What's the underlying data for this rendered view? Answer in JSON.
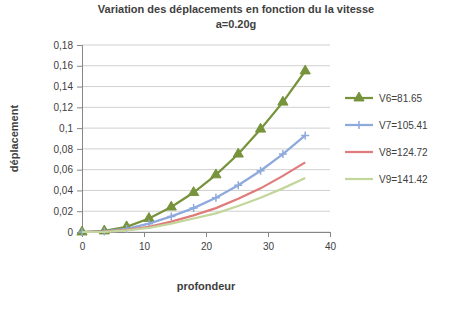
{
  "chart_data": {
    "type": "line",
    "title": "Variation des déplacements en fonction du la vitesse",
    "subtitle": "a=0.20g",
    "x_label": "profondeur",
    "y_label": "déplacement",
    "x": [
      0,
      3.6,
      7.2,
      10.8,
      14.4,
      18,
      21.6,
      25.2,
      28.8,
      32.4,
      36
    ],
    "series": [
      {
        "name": "V6=81.65",
        "color": "#77933c",
        "marker": "triangle",
        "values": [
          0,
          0.001,
          0.005,
          0.013,
          0.024,
          0.038,
          0.055,
          0.075,
          0.099,
          0.125,
          0.155
        ]
      },
      {
        "name": "V7=105.41",
        "color": "#8ea9db",
        "marker": "plus",
        "values": [
          0,
          0.0005,
          0.003,
          0.008,
          0.015,
          0.023,
          0.033,
          0.045,
          0.059,
          0.075,
          0.093
        ]
      },
      {
        "name": "V8=124.72",
        "color": "#e07b7b",
        "marker": "none",
        "values": [
          0,
          0.0003,
          0.002,
          0.005,
          0.01,
          0.016,
          0.023,
          0.032,
          0.042,
          0.054,
          0.067
        ]
      },
      {
        "name": "V9=141.42",
        "color": "#c3d69b",
        "marker": "none",
        "values": [
          0,
          0.0002,
          0.0015,
          0.004,
          0.008,
          0.013,
          0.018,
          0.025,
          0.033,
          0.042,
          0.052
        ]
      }
    ],
    "xlim": [
      0,
      40
    ],
    "xticks": [
      0,
      10,
      20,
      30,
      40
    ],
    "ylim": [
      0,
      0.18
    ],
    "yticks": [
      0,
      {
        "value": 0.02,
        "label": "0,02"
      },
      {
        "value": 0.04,
        "label": "0,04"
      },
      {
        "value": 0.06,
        "label": "0,06"
      },
      {
        "value": 0.08,
        "label": "0,08"
      },
      {
        "value": 0.1,
        "label": "0,1"
      },
      {
        "value": 0.12,
        "label": "0,12"
      },
      {
        "value": 0.14,
        "label": "0,14"
      },
      {
        "value": 0.16,
        "label": "0,16"
      },
      {
        "value": 0.18,
        "label": "0,18"
      }
    ],
    "grid": true,
    "legend": "right"
  }
}
